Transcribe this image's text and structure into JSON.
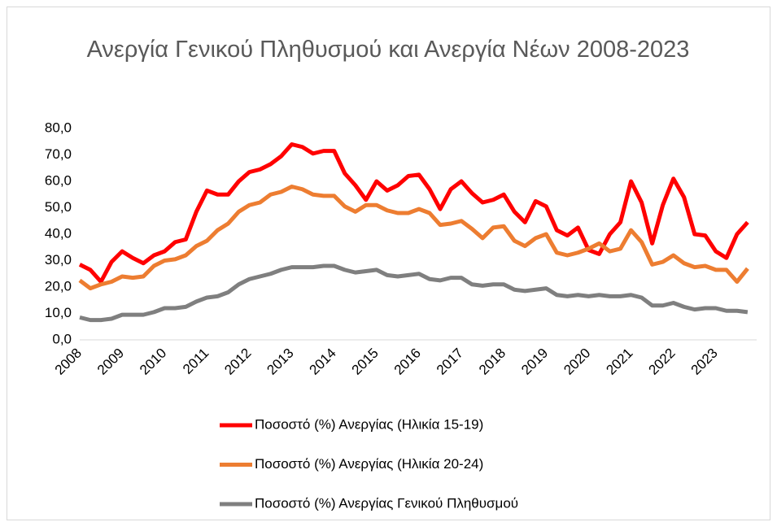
{
  "chart_data": {
    "type": "line",
    "title": "Ανεργία Γενικού Πληθυσμού και Ανεργία Νέων 2008-2023",
    "categories": [
      "2008",
      null,
      null,
      null,
      "2009",
      null,
      null,
      null,
      "2010",
      null,
      null,
      null,
      "2011",
      null,
      null,
      null,
      "2012",
      null,
      null,
      null,
      "2013",
      null,
      null,
      null,
      "2014",
      null,
      null,
      null,
      "2015",
      null,
      null,
      null,
      "2016",
      null,
      null,
      null,
      "2017",
      null,
      null,
      null,
      "2018",
      null,
      null,
      null,
      "2019",
      null,
      null,
      null,
      "2020",
      null,
      null,
      null,
      "2021",
      null,
      null,
      null,
      "2022",
      null,
      null,
      null,
      "2023",
      null,
      null,
      null
    ],
    "series": [
      {
        "name": "Ποσοστό (%) Ανεργίας (Ηλικία 15-19)",
        "color": "#ff0000",
        "values": [
          28.5,
          26.5,
          22,
          29.5,
          33.5,
          31,
          29,
          32,
          33.5,
          37,
          38,
          48.5,
          56.5,
          55,
          55,
          60,
          63.5,
          64.5,
          66.5,
          69.5,
          74,
          73,
          70.5,
          71.5,
          71.5,
          63,
          58.5,
          53,
          60,
          56.5,
          58.5,
          62,
          62.5,
          57,
          49.5,
          57,
          60,
          55.5,
          52,
          53,
          55,
          48.5,
          44.5,
          52.5,
          50.5,
          41.5,
          39.5,
          42.5,
          34,
          32.5,
          40,
          44.5,
          60,
          52,
          36.5,
          51,
          61,
          54,
          40,
          39.5,
          33.5,
          31,
          40,
          44.5
        ]
      },
      {
        "name": "Ποσοστό (%) Ανεργίας (Ηλικία 20-24)",
        "color": "#ed7d31",
        "values": [
          22.5,
          19.5,
          21,
          22,
          24,
          23.5,
          24,
          28,
          30,
          30.5,
          32,
          35.5,
          37.5,
          41.5,
          44,
          48.5,
          51,
          52,
          55,
          56,
          58,
          57,
          55,
          54.5,
          54.5,
          50.5,
          48.5,
          51,
          51,
          49,
          48,
          48,
          49.5,
          48,
          43.5,
          44,
          45,
          42,
          38.5,
          42.5,
          43,
          37.5,
          35.5,
          38.5,
          40,
          33,
          32,
          33,
          34.5,
          36.5,
          33.5,
          34.5,
          41.5,
          37,
          28.5,
          29.5,
          32,
          29,
          27.5,
          28,
          26.5,
          26.5,
          22,
          27
        ]
      },
      {
        "name": "Ποσοστό (%) Ανεργίας Γενικού Πληθυσμού",
        "color": "#7f7f7f",
        "values": [
          8.5,
          7.5,
          7.5,
          8,
          9.5,
          9.5,
          9.5,
          10.5,
          12,
          12,
          12.5,
          14.5,
          16,
          16.5,
          18,
          21,
          23,
          24,
          25,
          26.5,
          27.5,
          27.5,
          27.5,
          28,
          28,
          26.5,
          25.5,
          26,
          26.5,
          24.5,
          24,
          24.5,
          25,
          23,
          22.5,
          23.5,
          23.5,
          21,
          20.5,
          21,
          21,
          19,
          18.5,
          19,
          19.5,
          17,
          16.5,
          17,
          16.5,
          17,
          16.5,
          16.5,
          17,
          16,
          13,
          13,
          14,
          12.5,
          11.5,
          12,
          12,
          11,
          11,
          10.5
        ]
      }
    ],
    "ylim": [
      0,
      80
    ],
    "yticks": [
      {
        "value": 0,
        "label": "0,0"
      },
      {
        "value": 10,
        "label": "10,0"
      },
      {
        "value": 20,
        "label": "20,0"
      },
      {
        "value": 30,
        "label": "30,0"
      },
      {
        "value": 40,
        "label": "40,0"
      },
      {
        "value": 50,
        "label": "50,0"
      },
      {
        "value": 60,
        "label": "60,0"
      },
      {
        "value": 70,
        "label": "70,0"
      },
      {
        "value": 80,
        "label": "80,0"
      }
    ],
    "grid": false,
    "legend": "bottom"
  }
}
